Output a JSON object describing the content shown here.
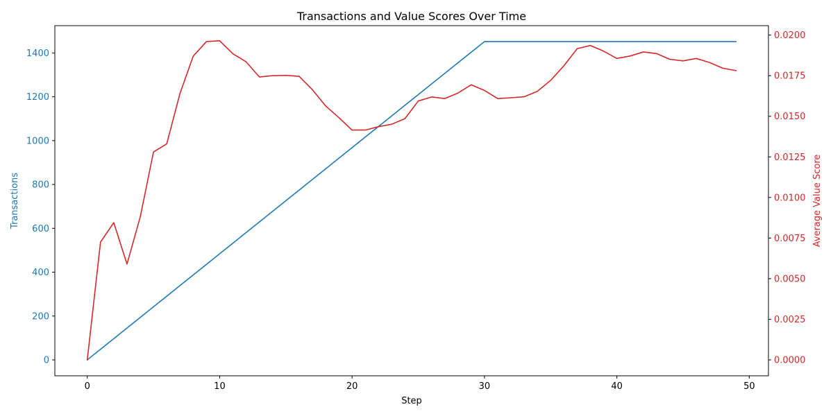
{
  "chart_data": {
    "type": "line",
    "title": "Transactions and Value Scores Over Time",
    "xlabel": "Step",
    "ylabel_left": "Transactions",
    "ylabel_right": "Average Value Score",
    "xlim": [
      -2.45,
      51.45
    ],
    "ylim_left": [
      -72.6,
      1524.6
    ],
    "ylim_right": [
      -0.00098,
      0.02058
    ],
    "x_ticks": [
      0,
      10,
      20,
      30,
      40,
      50
    ],
    "y_left_ticks": [
      0,
      200,
      400,
      600,
      800,
      1000,
      1200,
      1400
    ],
    "y_right_ticks": [
      0.0,
      0.0025,
      0.005,
      0.0075,
      0.01,
      0.0125,
      0.015,
      0.0175,
      0.02
    ],
    "y_right_tick_labels": [
      "0.0000",
      "0.0025",
      "0.0050",
      "0.0075",
      "0.0100",
      "0.0125",
      "0.0150",
      "0.0175",
      "0.0200"
    ],
    "x": [
      0,
      1,
      2,
      3,
      4,
      5,
      6,
      7,
      8,
      9,
      10,
      11,
      12,
      13,
      14,
      15,
      16,
      17,
      18,
      19,
      20,
      21,
      22,
      23,
      24,
      25,
      26,
      27,
      28,
      29,
      30,
      31,
      32,
      33,
      34,
      35,
      36,
      37,
      38,
      39,
      40,
      41,
      42,
      43,
      44,
      45,
      46,
      47,
      48,
      49
    ],
    "series": [
      {
        "name": "Transactions",
        "axis": "left",
        "color": "#1f77b4",
        "values": [
          0,
          48.4,
          96.8,
          145.2,
          193.6,
          242,
          290.4,
          338.8,
          387.2,
          435.6,
          484,
          532.4,
          580.8,
          629.2,
          677.6,
          726,
          774.4,
          822.8,
          871.2,
          919.6,
          968,
          1016.4,
          1064.8,
          1113.2,
          1161.6,
          1210,
          1258.4,
          1306.8,
          1355.2,
          1403.6,
          1452,
          1452,
          1452,
          1452,
          1452,
          1452,
          1452,
          1452,
          1452,
          1452,
          1452,
          1452,
          1452,
          1452,
          1452,
          1452,
          1452,
          1452,
          1452,
          1452
        ]
      },
      {
        "name": "Average Value Score",
        "axis": "right",
        "color": "#d62728",
        "values": [
          0.0,
          0.00725,
          0.00845,
          0.0059,
          0.0088,
          0.0128,
          0.0133,
          0.0164,
          0.0187,
          0.0196,
          0.01965,
          0.01885,
          0.01835,
          0.01742,
          0.0175,
          0.01752,
          0.01746,
          0.01664,
          0.01564,
          0.01492,
          0.01415,
          0.01415,
          0.01436,
          0.01451,
          0.01486,
          0.01594,
          0.01619,
          0.01609,
          0.01643,
          0.01694,
          0.01659,
          0.01609,
          0.01614,
          0.0162,
          0.01654,
          0.01721,
          0.01811,
          0.01916,
          0.01936,
          0.01901,
          0.01856,
          0.01871,
          0.01896,
          0.01886,
          0.01851,
          0.01841,
          0.01856,
          0.01831,
          0.01796,
          0.01781
        ]
      }
    ],
    "grid": false,
    "legend": "none"
  }
}
